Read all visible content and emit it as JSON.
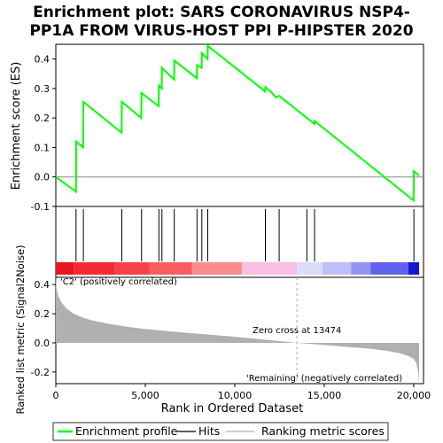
{
  "chart_data": {
    "type": "line",
    "title_lines": [
      "Enrichment plot: SARS CORONAVIRUS NSP4-",
      "PP1A FROM VIRUS-HOST PPI P-HIPSTER 2020"
    ],
    "es_panel": {
      "ylabel": "Enrichment score (ES)",
      "ylim": [
        -0.1,
        0.45
      ],
      "yticks": [
        -0.1,
        0.0,
        0.1,
        0.2,
        0.3,
        0.4
      ],
      "ytick_labels": [
        "-0.1",
        "0.0",
        "0.1",
        "0.2",
        "0.3",
        "0.4"
      ],
      "series": [
        {
          "name": "Enrichment profile",
          "color": "#00ff00",
          "x": [
            0,
            1130,
            1140,
            1530,
            1540,
            3680,
            3690,
            4780,
            4790,
            5750,
            5760,
            5920,
            5930,
            6610,
            6620,
            7880,
            7890,
            8150,
            8160,
            8480,
            8490,
            11700,
            11710,
            12000,
            12300,
            12480,
            14030,
            14450,
            14460,
            20000,
            20010,
            20300
          ],
          "y": [
            0.0,
            -0.05,
            0.12,
            0.1,
            0.255,
            0.15,
            0.255,
            0.2,
            0.285,
            0.24,
            0.31,
            0.3,
            0.37,
            0.33,
            0.395,
            0.335,
            0.38,
            0.37,
            0.42,
            0.4,
            0.445,
            0.29,
            0.305,
            0.29,
            0.27,
            0.275,
            0.2,
            0.18,
            0.19,
            -0.08,
            0.02,
            0.005
          ]
        }
      ]
    },
    "hits": {
      "name": "Hits",
      "color": "#000000",
      "positions": [
        1130,
        1540,
        3690,
        4790,
        5760,
        5930,
        6620,
        7890,
        8160,
        8490,
        11710,
        12480,
        14030,
        14460,
        20010
      ]
    },
    "ranked_panel": {
      "ylabel": "Ranked list metric (Signal2Noise)",
      "xlabel": "Rank in Ordered Dataset",
      "xlim": [
        0,
        20300
      ],
      "xticks": [
        0,
        5000,
        10000,
        15000,
        20000
      ],
      "xtick_labels": [
        "0",
        "5,000",
        "10,000",
        "15,000",
        "20,000"
      ],
      "ylim": [
        -0.28,
        0.45
      ],
      "yticks": [
        -0.2,
        0.0,
        0.2,
        0.4
      ],
      "ytick_labels": [
        "-0.2",
        "0.0",
        "0.2",
        "0.4"
      ],
      "series": [
        {
          "name": "Ranking metric scores",
          "color": "#b0b0b0",
          "x": [
            0,
            50,
            150,
            300,
            600,
            1000,
            1500,
            2000,
            3000,
            4000,
            5000,
            6000,
            7000,
            8000,
            9000,
            10000,
            11000,
            12000,
            13474,
            14500,
            15500,
            16500,
            17500,
            18500,
            19200,
            19700,
            20000,
            20150,
            20250,
            20300
          ],
          "y": [
            0.45,
            0.37,
            0.32,
            0.28,
            0.235,
            0.2,
            0.175,
            0.155,
            0.13,
            0.11,
            0.095,
            0.083,
            0.072,
            0.062,
            0.052,
            0.042,
            0.03,
            0.018,
            0.0,
            -0.01,
            -0.02,
            -0.03,
            -0.04,
            -0.055,
            -0.07,
            -0.09,
            -0.11,
            -0.14,
            -0.2,
            -0.28
          ]
        }
      ],
      "zero_cross_label": "Zero cross at 13474",
      "zero_cross_x": 13474,
      "positive_label": "'C2' (positively correlated)",
      "positive_color": "#ff0000",
      "negative_label": "'Remaining' (negatively correlated)",
      "negative_color": "#0000ff"
    },
    "color_bar": [
      {
        "from": 0,
        "to": 1000,
        "color": "#e8141e"
      },
      {
        "from": 1000,
        "to": 3300,
        "color": "#f42a32"
      },
      {
        "from": 3300,
        "to": 5200,
        "color": "#f84048"
      },
      {
        "from": 5200,
        "to": 7600,
        "color": "#fa5c62"
      },
      {
        "from": 7600,
        "to": 10400,
        "color": "#fb8c90"
      },
      {
        "from": 10400,
        "to": 13500,
        "color": "#f8bfe0"
      },
      {
        "from": 13500,
        "to": 14900,
        "color": "#dcdcfa"
      },
      {
        "from": 14900,
        "to": 16500,
        "color": "#bebef8"
      },
      {
        "from": 16500,
        "to": 17600,
        "color": "#9494f2"
      },
      {
        "from": 17600,
        "to": 19700,
        "color": "#6262ee"
      },
      {
        "from": 19700,
        "to": 20300,
        "color": "#1616d6"
      }
    ],
    "legend": [
      {
        "name": "Enrichment profile",
        "color": "#00ff00"
      },
      {
        "name": "Hits",
        "color": "#000000"
      },
      {
        "name": "Ranking metric scores",
        "color": "#b0b0b0"
      }
    ]
  }
}
